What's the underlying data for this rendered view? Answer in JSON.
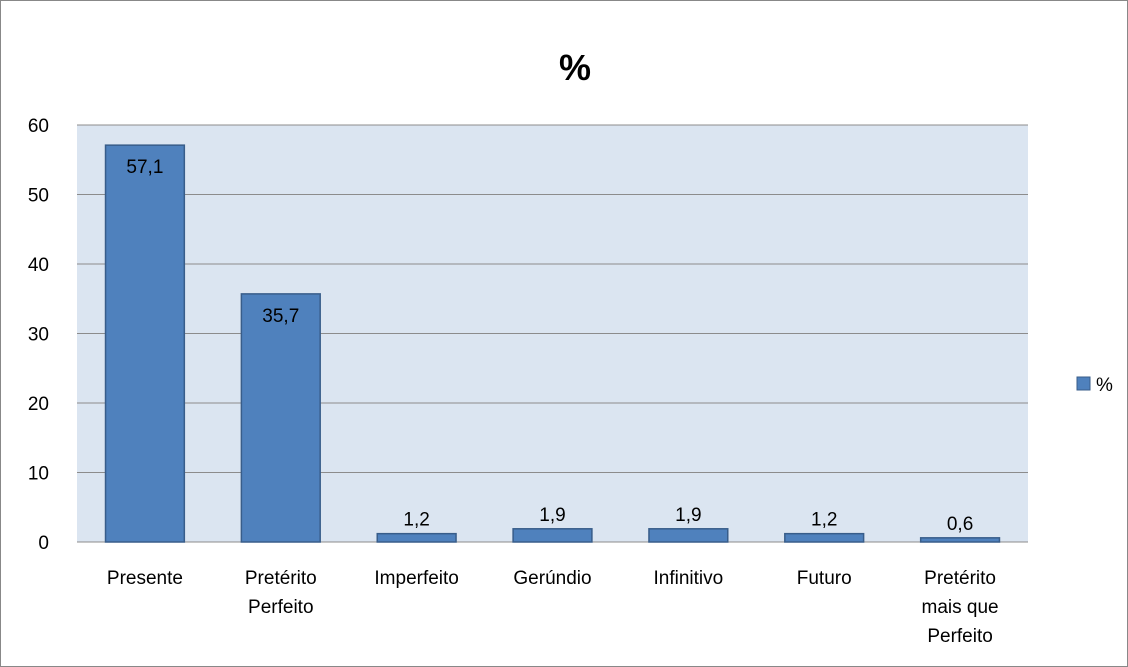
{
  "chart_data": {
    "type": "bar",
    "title": "%",
    "categories": [
      [
        "Presente"
      ],
      [
        "Pretérito",
        "Perfeito"
      ],
      [
        "Imperfeito"
      ],
      [
        "Gerúndio"
      ],
      [
        "Infinitivo"
      ],
      [
        "Futuro"
      ],
      [
        "Pretérito",
        "mais que",
        "Perfeito"
      ]
    ],
    "series": [
      {
        "name": "%",
        "values": [
          57.1,
          35.7,
          1.2,
          1.9,
          1.9,
          1.2,
          0.6
        ]
      }
    ],
    "value_labels": [
      "57,1",
      "35,7",
      "1,2",
      "1,9",
      "1,9",
      "1,2",
      "0,6"
    ],
    "yticks": [
      0,
      10,
      20,
      30,
      40,
      50,
      60
    ],
    "ylim": [
      0,
      60
    ],
    "xlabel": "",
    "ylabel": "",
    "grid": true,
    "legend_position": "right",
    "colors": {
      "bar_fill": "#4f81bd",
      "bar_stroke": "#385d8a",
      "plot_background": "#dbe5f1",
      "gridline": "#8c8c8c"
    }
  }
}
